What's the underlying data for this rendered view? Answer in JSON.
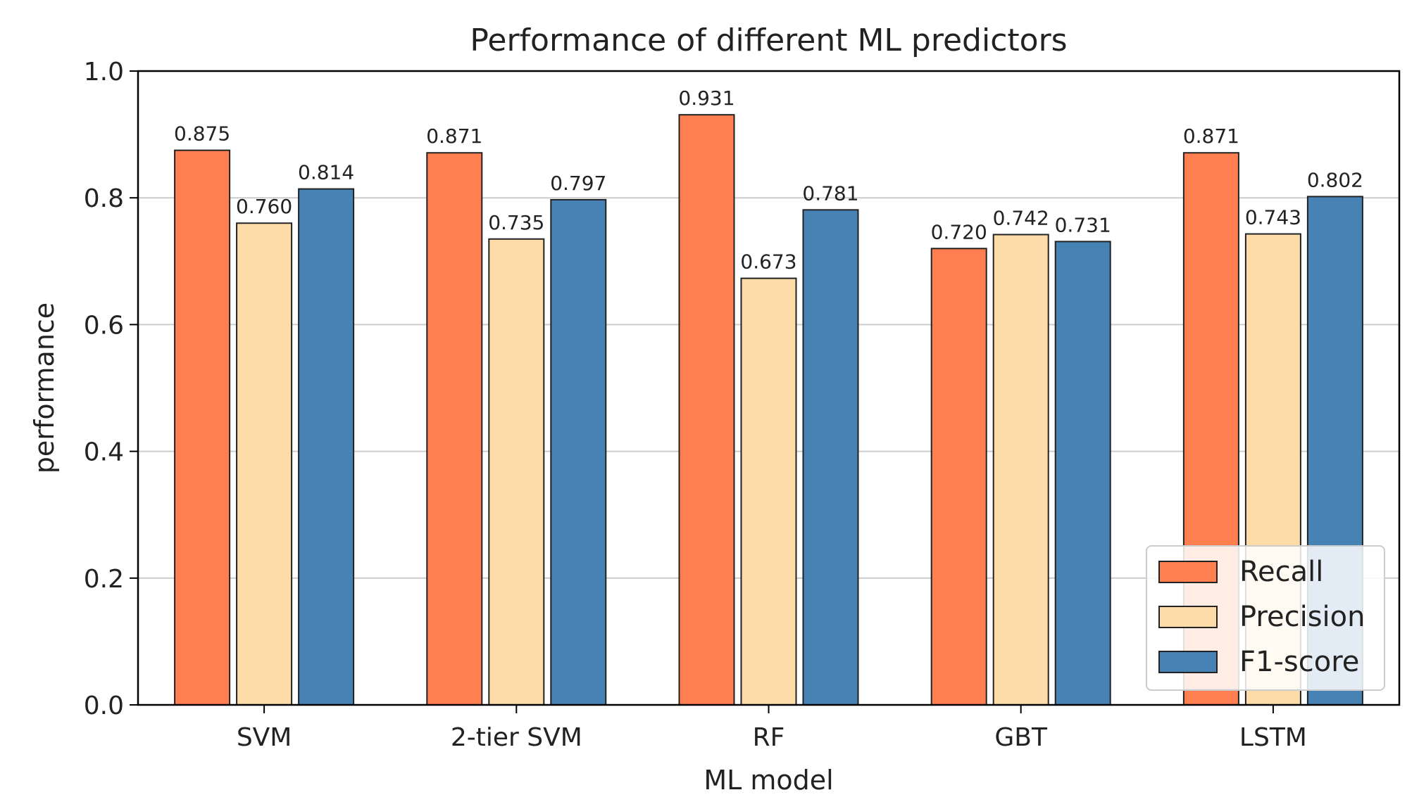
{
  "chart_data": {
    "type": "bar",
    "title": "Performance of different ML predictors",
    "xlabel": "ML model",
    "ylabel": "performance",
    "categories": [
      "SVM",
      "2-tier SVM",
      "RF",
      "GBT",
      "LSTM"
    ],
    "series": [
      {
        "name": "Recall",
        "color": "#ff7f50",
        "values": [
          0.875,
          0.871,
          0.931,
          0.72,
          0.871
        ],
        "labels": [
          "0.875",
          "0.871",
          "0.931",
          "0.720",
          "0.871"
        ]
      },
      {
        "name": "Precision",
        "color": "#fddcaa",
        "values": [
          0.76,
          0.735,
          0.673,
          0.742,
          0.743
        ],
        "labels": [
          "0.760",
          "0.735",
          "0.673",
          "0.742",
          "0.743"
        ]
      },
      {
        "name": "F1-score",
        "color": "#4682b4",
        "values": [
          0.814,
          0.797,
          0.781,
          0.731,
          0.802
        ],
        "labels": [
          "0.814",
          "0.797",
          "0.781",
          "0.731",
          "0.802"
        ]
      }
    ],
    "ylim": [
      0.0,
      1.0
    ],
    "yticks": [
      "0.0",
      "0.2",
      "0.4",
      "0.6",
      "0.8",
      "1.0"
    ],
    "grid": true,
    "legend_position": "lower-right"
  }
}
